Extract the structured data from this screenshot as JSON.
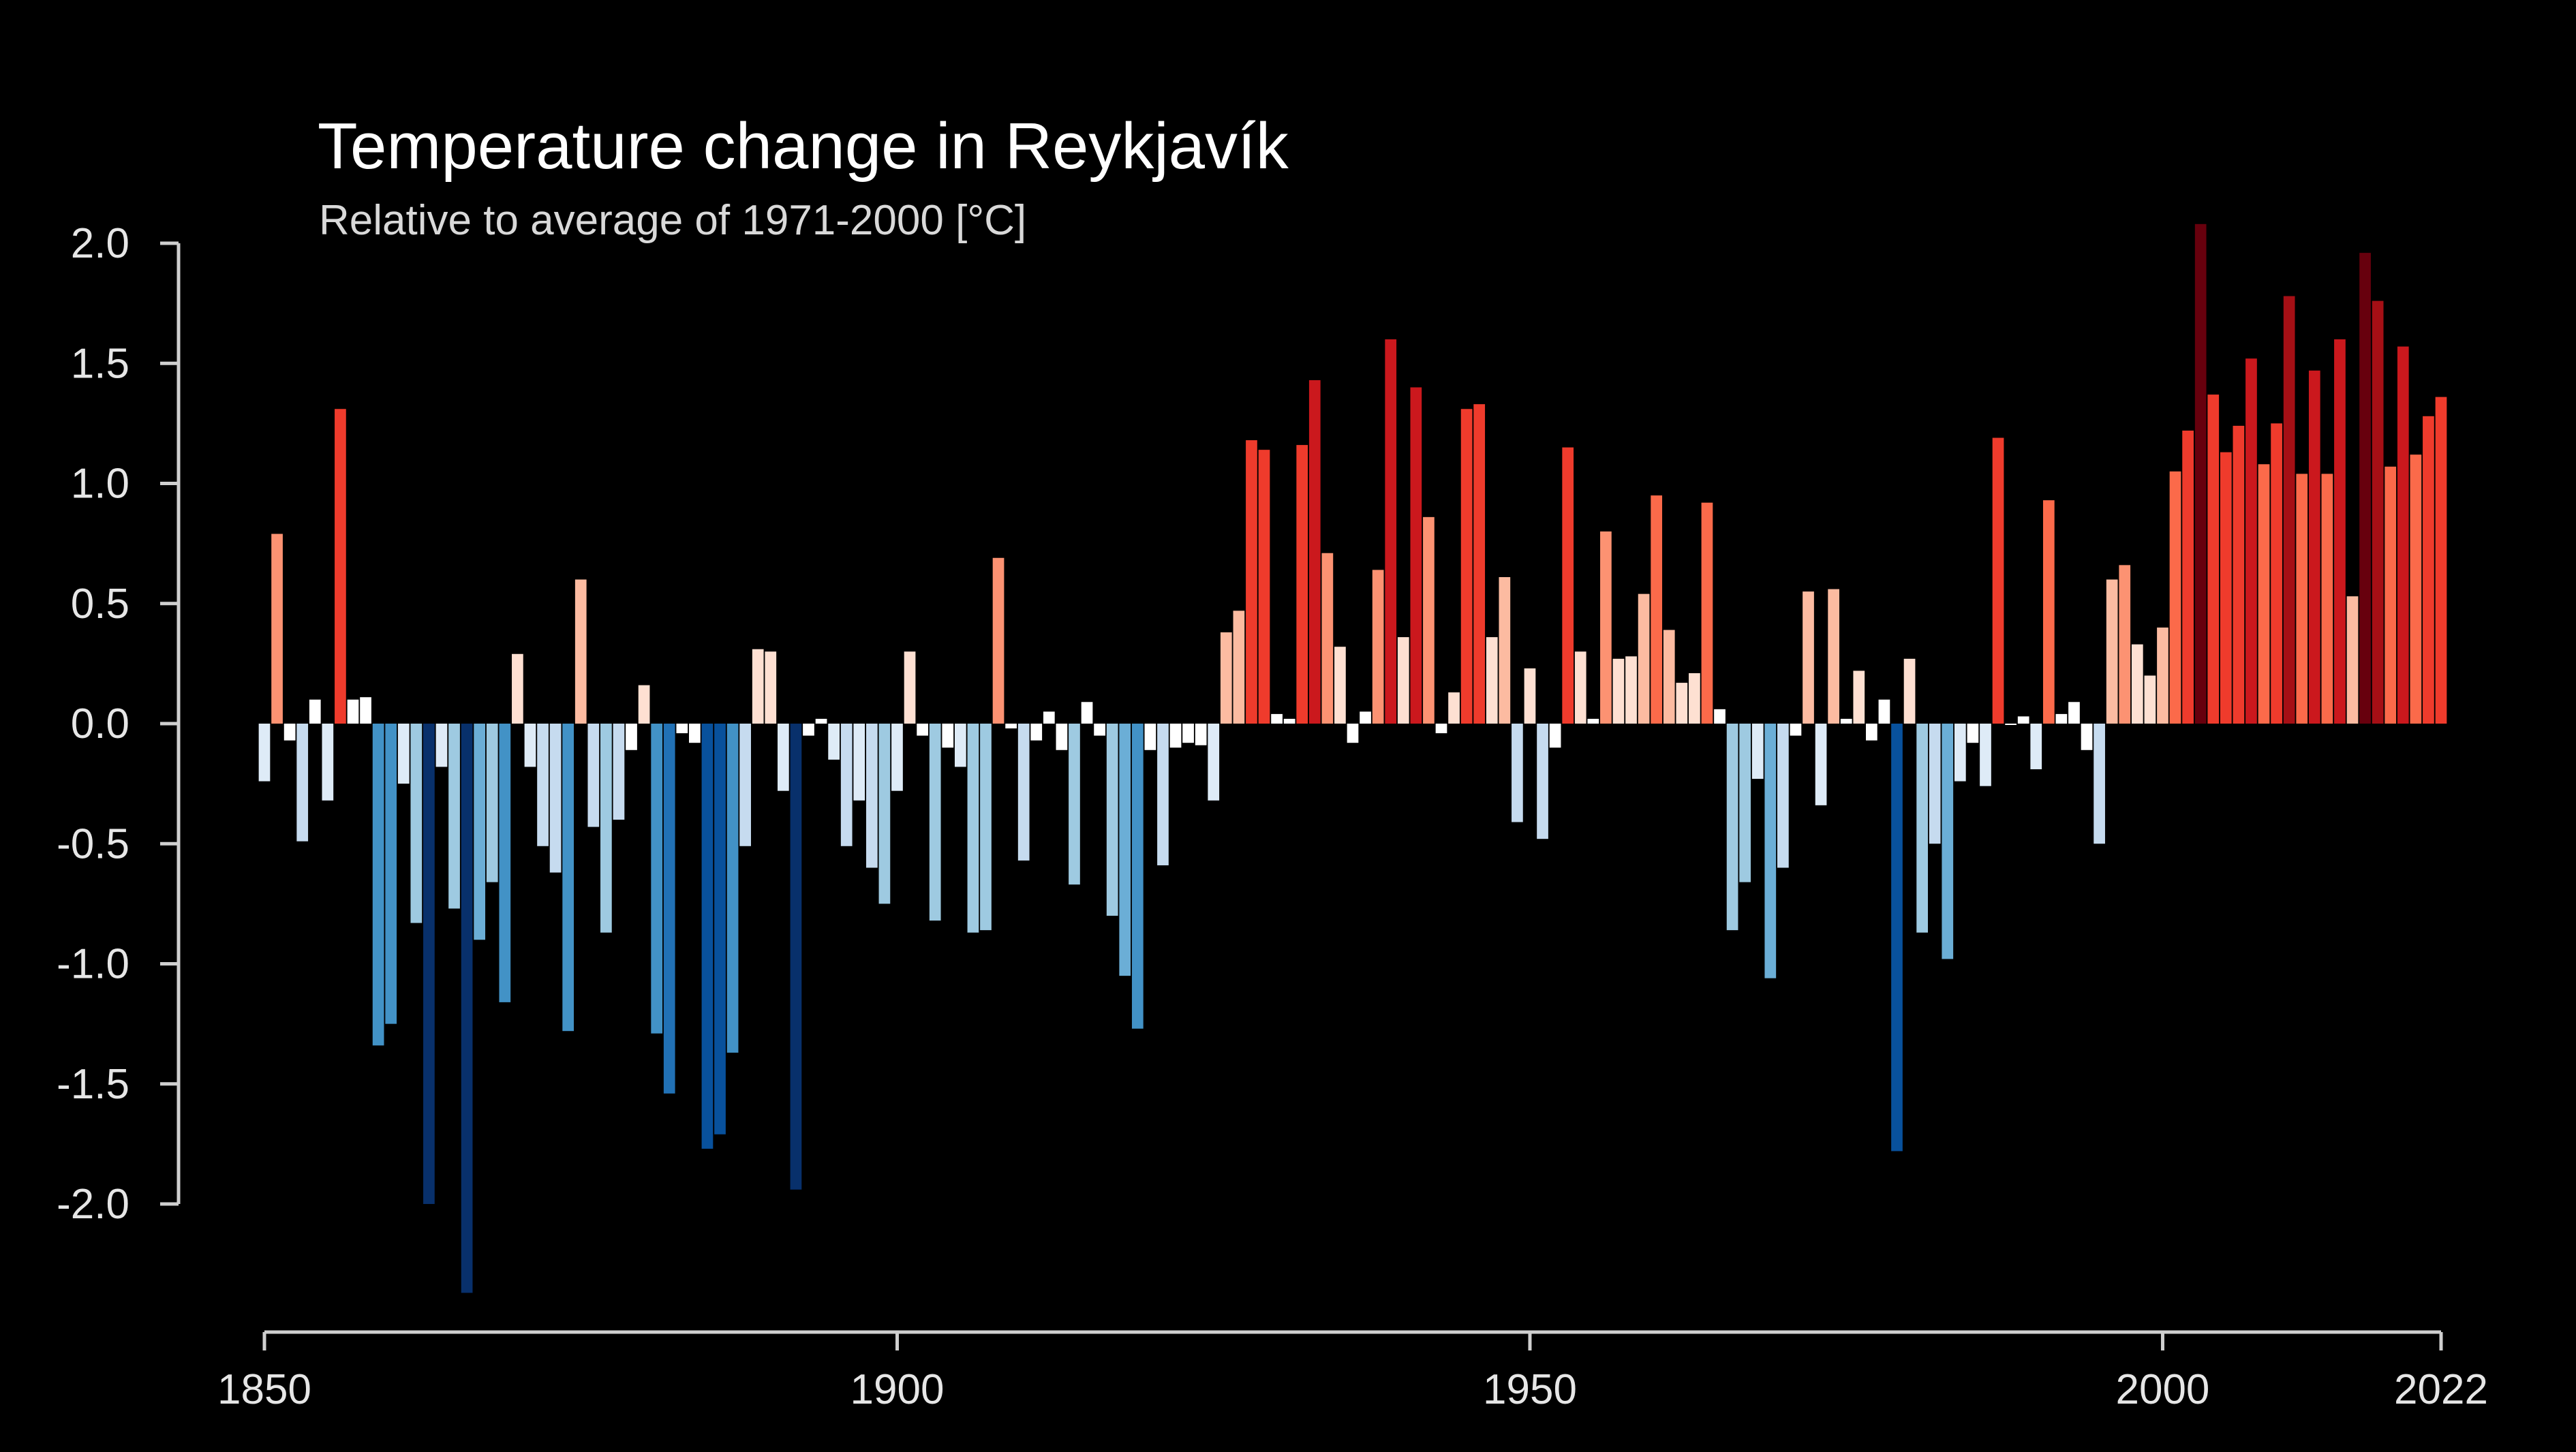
{
  "chart_data": {
    "type": "bar",
    "title": "Temperature change in Reykjavík",
    "subtitle": "Relative to average of 1971-2000  [°C]",
    "xlabel": "",
    "ylabel": "",
    "x_range": [
      1850,
      2022
    ],
    "ylim": [
      -2.35,
      2.0
    ],
    "y_ticks": [
      "2.0",
      "1.5",
      "1.0",
      "0.5",
      "0.0",
      "-0.5",
      "-1.0",
      "-1.5",
      "-2.0"
    ],
    "y_tick_values": [
      2.0,
      1.5,
      1.0,
      0.5,
      0.0,
      -0.5,
      -1.0,
      -1.5,
      -2.0
    ],
    "x_ticks": [
      "1850",
      "1900",
      "1950",
      "2000",
      "2022"
    ],
    "x_tick_values": [
      1850,
      1900,
      1950,
      2000,
      2022
    ],
    "grid": false,
    "legend": "none",
    "background": "#000000",
    "color_scale": [
      "#08306b",
      "#08519c",
      "#2171b5",
      "#4292c6",
      "#6baed6",
      "#9ecae1",
      "#c6dbef",
      "#deebf7",
      "#ffffff",
      "#fee0d2",
      "#fcbba1",
      "#fc9272",
      "#fb6a4a",
      "#ef3b2c",
      "#cb181d",
      "#a50f15",
      "#67000d"
    ],
    "years": [
      1850,
      1851,
      1852,
      1853,
      1854,
      1855,
      1856,
      1857,
      1858,
      1859,
      1860,
      1861,
      1862,
      1863,
      1864,
      1865,
      1866,
      1867,
      1868,
      1869,
      1870,
      1871,
      1872,
      1873,
      1874,
      1875,
      1876,
      1877,
      1878,
      1879,
      1880,
      1881,
      1882,
      1883,
      1884,
      1885,
      1886,
      1887,
      1888,
      1889,
      1890,
      1891,
      1892,
      1893,
      1894,
      1895,
      1896,
      1897,
      1898,
      1899,
      1900,
      1901,
      1902,
      1903,
      1904,
      1905,
      1906,
      1907,
      1908,
      1909,
      1910,
      1911,
      1912,
      1913,
      1914,
      1915,
      1916,
      1917,
      1918,
      1919,
      1920,
      1921,
      1922,
      1923,
      1924,
      1925,
      1926,
      1927,
      1928,
      1929,
      1930,
      1931,
      1932,
      1933,
      1934,
      1935,
      1936,
      1937,
      1938,
      1939,
      1940,
      1941,
      1942,
      1943,
      1944,
      1945,
      1946,
      1947,
      1948,
      1949,
      1950,
      1951,
      1952,
      1953,
      1954,
      1955,
      1956,
      1957,
      1958,
      1959,
      1960,
      1961,
      1962,
      1963,
      1964,
      1965,
      1966,
      1967,
      1968,
      1969,
      1970,
      1971,
      1972,
      1973,
      1974,
      1975,
      1976,
      1977,
      1978,
      1979,
      1980,
      1981,
      1982,
      1983,
      1984,
      1985,
      1986,
      1987,
      1988,
      1989,
      1990,
      1991,
      1992,
      1993,
      1994,
      1995,
      1996,
      1997,
      1998,
      1999,
      2000,
      2001,
      2002,
      2003,
      2004,
      2005,
      2006,
      2007,
      2008,
      2009,
      2010,
      2011,
      2012,
      2013,
      2014,
      2015,
      2016,
      2017,
      2018,
      2019,
      2020,
      2021,
      2022
    ],
    "values": [
      -0.24,
      0.79,
      -0.07,
      -0.49,
      0.1,
      -0.32,
      1.31,
      0.1,
      0.11,
      -1.34,
      -1.25,
      -0.25,
      -0.83,
      -2.0,
      -0.18,
      -0.77,
      -2.37,
      -0.9,
      -0.66,
      -1.16,
      0.29,
      -0.18,
      -0.51,
      -0.62,
      -1.28,
      0.6,
      -0.43,
      -0.87,
      -0.4,
      -0.11,
      0.16,
      -1.29,
      -1.54,
      -0.04,
      -0.08,
      -1.77,
      -1.71,
      -1.37,
      -0.51,
      0.31,
      0.3,
      -0.28,
      -1.94,
      -0.05,
      0.02,
      -0.15,
      -0.51,
      -0.32,
      -0.6,
      -0.75,
      -0.28,
      0.3,
      -0.05,
      -0.82,
      -0.1,
      -0.18,
      -0.87,
      -0.86,
      0.69,
      -0.02,
      -0.57,
      -0.07,
      0.05,
      -0.11,
      -0.67,
      0.09,
      -0.05,
      -0.8,
      -1.05,
      -1.27,
      -0.11,
      -0.59,
      -0.1,
      -0.08,
      -0.09,
      -0.32,
      0.38,
      0.47,
      1.18,
      1.14,
      0.04,
      0.02,
      1.16,
      1.43,
      0.71,
      0.32,
      -0.08,
      0.05,
      0.64,
      1.6,
      0.36,
      1.4,
      0.86,
      -0.04,
      0.13,
      1.31,
      1.33,
      0.36,
      0.61,
      -0.41,
      0.23,
      -0.48,
      -0.1,
      1.15,
      0.3,
      0.02,
      0.8,
      0.27,
      0.28,
      0.54,
      0.95,
      0.39,
      0.17,
      0.21,
      0.92,
      0.06,
      -0.86,
      -0.66,
      -0.23,
      -1.06,
      -0.6,
      -0.05,
      0.55,
      -0.34,
      0.56,
      0.02,
      0.22,
      -0.07,
      0.1,
      -1.78,
      0.27,
      -0.87,
      -0.5,
      -0.98,
      -0.24,
      -0.08,
      -0.26,
      1.19,
      0.0,
      0.03,
      -0.19,
      0.93,
      0.04,
      0.09,
      -0.11,
      -0.5,
      0.6,
      0.66,
      0.33,
      0.2,
      0.4,
      1.05,
      1.22,
      2.08,
      1.37,
      1.13,
      1.24,
      1.52,
      1.08,
      1.25,
      1.78,
      1.04,
      1.47,
      1.04,
      1.6,
      0.53,
      1.96,
      1.76,
      1.07,
      1.57,
      1.12,
      1.28,
      1.36
    ]
  }
}
